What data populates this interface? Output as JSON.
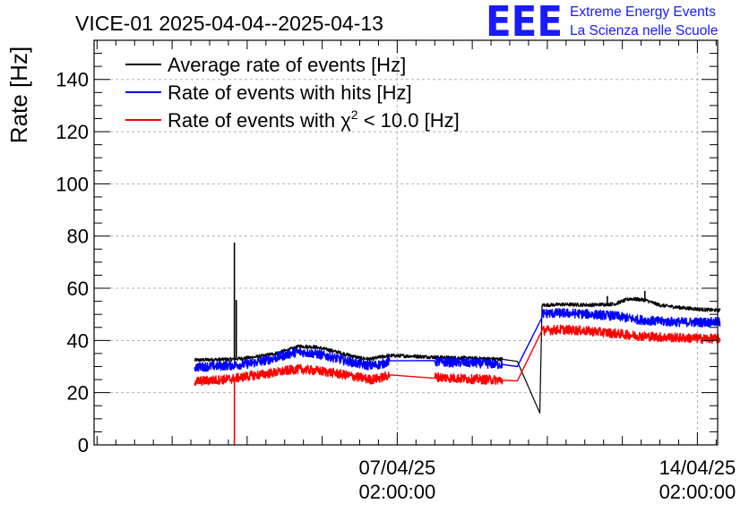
{
  "chart_data": {
    "type": "line",
    "title": "VICE-01 2025-04-04--2025-04-13",
    "ylabel": "Rate [Hz]",
    "xlabel": "",
    "ylim": [
      0,
      155
    ],
    "xlim_days": [
      -1.04,
      7.27
    ],
    "yticks": [
      0,
      20,
      40,
      60,
      80,
      100,
      120,
      140
    ],
    "xticks": [
      {
        "day": 3.0,
        "line1": "07/04/25",
        "line2": "02:00:00"
      },
      {
        "day": 7.0,
        "line1": "14/04/25",
        "line2": "02:00:00"
      }
    ],
    "grid": true,
    "legend_position": "top-left",
    "x_unit": "days since 2025-04-04 02:00:00",
    "series": [
      {
        "name": "Average rate of events [Hz]",
        "color": "#000000",
        "noise": 0.7,
        "points": [
          [
            0.3,
            32.5
          ],
          [
            0.8,
            32.8
          ],
          [
            1.0,
            33.3
          ],
          [
            1.2,
            34.0
          ],
          [
            1.4,
            35.2
          ],
          [
            1.6,
            36.8
          ],
          [
            1.7,
            37.8
          ],
          [
            1.9,
            37.5
          ],
          [
            2.1,
            36.3
          ],
          [
            2.3,
            34.8
          ],
          [
            2.5,
            33.3
          ],
          [
            2.65,
            32.8
          ],
          [
            2.8,
            33.8
          ],
          [
            2.9,
            34.2
          ],
          [
            3.2,
            34.0
          ],
          [
            3.5,
            33.6
          ],
          [
            4.0,
            33.2
          ],
          [
            4.4,
            32.8
          ],
          [
            4.6,
            32.0
          ],
          [
            4.9,
            12.2
          ],
          [
            4.93,
            53.5
          ],
          [
            5.2,
            53.8
          ],
          [
            5.6,
            53.6
          ],
          [
            5.9,
            54.0
          ],
          [
            6.1,
            56.0
          ],
          [
            6.3,
            55.5
          ],
          [
            6.5,
            53.5
          ],
          [
            6.8,
            52.5
          ],
          [
            7.1,
            51.8
          ],
          [
            7.3,
            51.5
          ]
        ],
        "spikes": [
          {
            "day": 0.83,
            "value": 77.5
          },
          {
            "day": 0.855,
            "value": 55.5
          },
          {
            "day": 6.3,
            "value": 59.0
          },
          {
            "day": 5.8,
            "value": 57.0
          }
        ]
      },
      {
        "name": "Rate of events with hits [Hz]",
        "color": "#0000ff",
        "noise": 1.8,
        "points": [
          [
            0.3,
            29.8
          ],
          [
            0.8,
            30.5
          ],
          [
            1.0,
            31.0
          ],
          [
            1.2,
            32.0
          ],
          [
            1.4,
            33.5
          ],
          [
            1.6,
            35.2
          ],
          [
            1.7,
            35.6
          ],
          [
            1.9,
            35.0
          ],
          [
            2.1,
            33.8
          ],
          [
            2.3,
            32.3
          ],
          [
            2.5,
            31.0
          ],
          [
            2.65,
            30.3
          ],
          [
            2.8,
            31.0
          ],
          [
            2.9,
            32.2
          ],
          [
            3.5,
            31.8
          ],
          [
            4.0,
            31.4
          ],
          [
            4.4,
            30.8
          ],
          [
            4.6,
            30.0
          ],
          [
            4.93,
            50.3
          ],
          [
            5.2,
            50.5
          ],
          [
            5.6,
            50.0
          ],
          [
            5.9,
            49.4
          ],
          [
            6.2,
            48.0
          ],
          [
            6.5,
            47.3
          ],
          [
            6.8,
            47.0
          ],
          [
            7.1,
            47.0
          ],
          [
            7.3,
            47.0
          ]
        ],
        "spikes": []
      },
      {
        "name": "Rate of events with χ² < 10.0 [Hz]",
        "label_main": "Rate of events with ",
        "label_chi": "χ",
        "label_sup": "2",
        "label_tail": " < 10.0 [Hz]",
        "color": "#ff0000",
        "noise": 1.8,
        "points": [
          [
            0.3,
            24.3
          ],
          [
            0.8,
            25.3
          ],
          [
            1.0,
            26.3
          ],
          [
            1.2,
            27.0
          ],
          [
            1.4,
            27.8
          ],
          [
            1.6,
            28.8
          ],
          [
            1.7,
            29.0
          ],
          [
            1.9,
            28.5
          ],
          [
            2.1,
            27.8
          ],
          [
            2.3,
            26.8
          ],
          [
            2.5,
            25.8
          ],
          [
            2.65,
            25.0
          ],
          [
            2.8,
            25.8
          ],
          [
            2.9,
            26.8
          ],
          [
            3.5,
            26.0
          ],
          [
            4.0,
            25.2
          ],
          [
            4.4,
            24.8
          ],
          [
            4.6,
            24.5
          ],
          [
            4.93,
            43.8
          ],
          [
            5.2,
            44.2
          ],
          [
            5.6,
            43.5
          ],
          [
            5.9,
            42.7
          ],
          [
            6.2,
            41.8
          ],
          [
            6.5,
            41.3
          ],
          [
            6.8,
            41.0
          ],
          [
            7.1,
            40.7
          ],
          [
            7.3,
            40.7
          ]
        ],
        "spikes": [
          {
            "day": 0.83,
            "value": 0
          }
        ]
      }
    ]
  },
  "logo": {
    "mark": "EEE",
    "line1": "Extreme Energy Events",
    "line2": "La Scienza nelle Scuole",
    "color": "#1a1aff"
  }
}
